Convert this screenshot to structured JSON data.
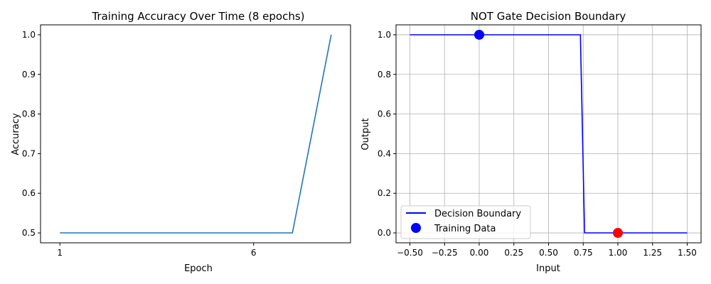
{
  "chart_data": [
    {
      "type": "line",
      "title": "Training Accuracy Over Time (8 epochs)",
      "xlabel": "Epoch",
      "ylabel": "Accuracy",
      "xlim": [
        0.5,
        8.5
      ],
      "ylim": [
        0.475,
        1.025
      ],
      "xticks": [
        1,
        6
      ],
      "yticks": [
        0.5,
        0.6,
        0.7,
        0.8,
        0.9,
        1.0
      ],
      "grid": false,
      "series": [
        {
          "color": "#1f77b4",
          "x": [
            1,
            2,
            3,
            4,
            5,
            6,
            7,
            8
          ],
          "y": [
            0.5,
            0.5,
            0.5,
            0.5,
            0.5,
            0.5,
            0.5,
            1.0
          ]
        }
      ]
    },
    {
      "type": "line",
      "title": "NOT Gate Decision Boundary",
      "xlabel": "Input",
      "ylabel": "Output",
      "xlim": [
        -0.6,
        1.6
      ],
      "ylim": [
        -0.05,
        1.05
      ],
      "xticks": [
        -0.5,
        -0.25,
        0.0,
        0.25,
        0.5,
        0.75,
        1.0,
        1.25,
        1.5
      ],
      "yticks": [
        0.0,
        0.2,
        0.4,
        0.6,
        0.8,
        1.0
      ],
      "grid": true,
      "legend_position": "lower-left",
      "series": [
        {
          "name": "Decision Boundary",
          "color": "#0000ff",
          "x": [
            -0.5,
            0.73,
            0.76,
            1.5
          ],
          "y": [
            1.0,
            1.0,
            0.0,
            0.0
          ]
        }
      ],
      "scatter": {
        "name": "Training Data",
        "legend_color": "#0000ff",
        "points": [
          {
            "x": 0.0,
            "y": 1.0,
            "color": "#0000ff"
          },
          {
            "x": 1.0,
            "y": 0.0,
            "color": "#ff0000"
          }
        ]
      }
    }
  ]
}
